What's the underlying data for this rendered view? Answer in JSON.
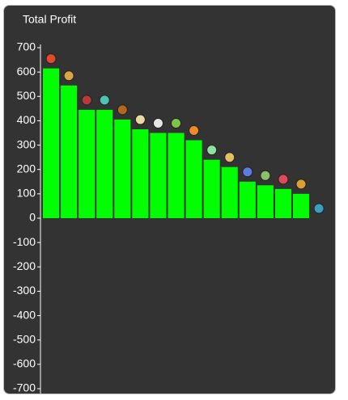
{
  "chart_data": {
    "type": "bar",
    "title": "Total Profit",
    "categories": [
      null,
      null,
      null,
      null,
      null,
      null,
      null,
      null,
      null,
      null,
      null,
      null,
      null,
      null,
      null,
      null
    ],
    "values": [
      615,
      545,
      445,
      445,
      405,
      365,
      350,
      350,
      320,
      240,
      210,
      150,
      135,
      120,
      100,
      0
    ],
    "color": "#00ff00",
    "ylim": [
      -700,
      700
    ],
    "yticks": [
      -700,
      -600,
      -500,
      -400,
      -300,
      -200,
      -100,
      0,
      100,
      200,
      300,
      400,
      500,
      600,
      700
    ]
  }
}
